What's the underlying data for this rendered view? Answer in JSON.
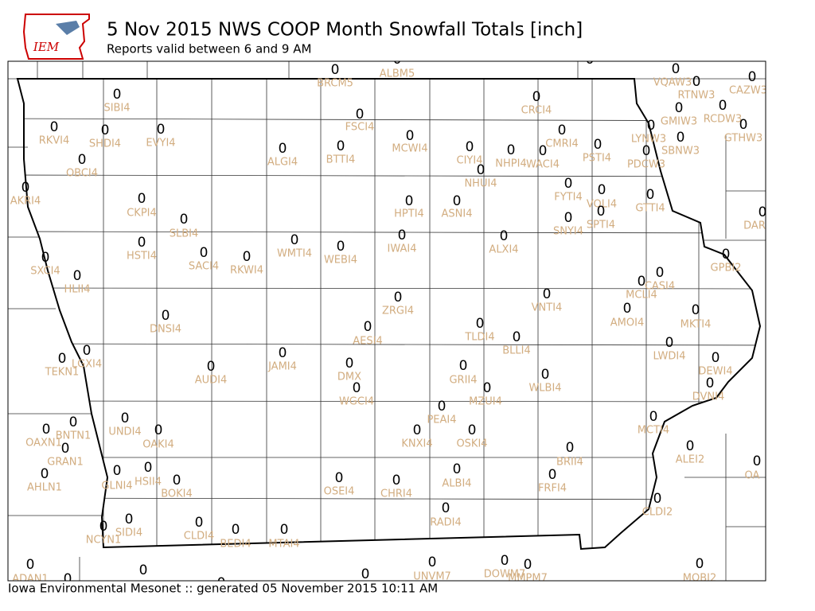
{
  "header": {
    "logo": "IEM",
    "title": "5 Nov 2015 NWS COOP Month Snowfall Totals [inch]",
    "subtitle": "Reports valid between 6 and 9 AM"
  },
  "map": {
    "stations": [
      {
        "name": "BRCM5",
        "value": 0
      },
      {
        "name": "ALBM5",
        "value": 0
      },
      {
        "name": null,
        "value": 0
      },
      {
        "name": "VQAW3",
        "value": 0
      },
      {
        "name": "RTNW3",
        "value": 0
      },
      {
        "name": "CAZW3",
        "value": 0
      },
      {
        "name": "SIBI4",
        "value": 0
      },
      {
        "name": "CRCI4",
        "value": 0
      },
      {
        "name": "GMIW3",
        "value": 0
      },
      {
        "name": "RCDW3",
        "value": 0
      },
      {
        "name": "FSCI4",
        "value": 0
      },
      {
        "name": "RKVI4",
        "value": 0
      },
      {
        "name": "SHDI4",
        "value": 0
      },
      {
        "name": "EVYI4",
        "value": 0
      },
      {
        "name": "LYNW3",
        "value": 0
      },
      {
        "name": "GTHW3",
        "value": 0
      },
      {
        "name": "MCWI4",
        "value": 0
      },
      {
        "name": "CMRI4",
        "value": 0
      },
      {
        "name": "SBNW3",
        "value": 0
      },
      {
        "name": "ALGI4",
        "value": 0
      },
      {
        "name": "BTTI4",
        "value": 0
      },
      {
        "name": "CIYI4",
        "value": 0
      },
      {
        "name": "NHPI4",
        "value": 0
      },
      {
        "name": "WACI4",
        "value": 0
      },
      {
        "name": "PSTI4",
        "value": 0
      },
      {
        "name": "PDCW3",
        "value": 0
      },
      {
        "name": "OBCI4",
        "value": 0
      },
      {
        "name": "NHUI4",
        "value": 0
      },
      {
        "name": "AKRI4",
        "value": 0
      },
      {
        "name": "CKPI4",
        "value": 0
      },
      {
        "name": "HPTI4",
        "value": 0
      },
      {
        "name": "ASNI4",
        "value": 0
      },
      {
        "name": "FYTI4",
        "value": 0
      },
      {
        "name": "VOLI4",
        "value": 0
      },
      {
        "name": "GTTI4",
        "value": 0
      },
      {
        "name": "DAR",
        "value": 0
      },
      {
        "name": "SLBI4",
        "value": 0
      },
      {
        "name": "SNYI4",
        "value": 0
      },
      {
        "name": "SPTI4",
        "value": 0
      },
      {
        "name": "IWAI4",
        "value": 0
      },
      {
        "name": "ALXI4",
        "value": 0
      },
      {
        "name": "GPBI2",
        "value": 0
      },
      {
        "name": "HSTI4",
        "value": 0
      },
      {
        "name": "SACI4",
        "value": 0
      },
      {
        "name": "RKWI4",
        "value": 0
      },
      {
        "name": "WMTI4",
        "value": 0
      },
      {
        "name": "WEBI4",
        "value": 0
      },
      {
        "name": "SXCI4",
        "value": 0
      },
      {
        "name": "HLII4",
        "value": 0
      },
      {
        "name": "CASI4",
        "value": 0
      },
      {
        "name": "MCLI4",
        "value": 0
      },
      {
        "name": "ZRGI4",
        "value": 0
      },
      {
        "name": "VNTI4",
        "value": 0
      },
      {
        "name": "AMOI4",
        "value": 0
      },
      {
        "name": "MKTI4",
        "value": 0
      },
      {
        "name": "DNSI4",
        "value": 0
      },
      {
        "name": "TLDI4",
        "value": 0
      },
      {
        "name": "AESI4",
        "value": 0
      },
      {
        "name": "BLLI4",
        "value": 0
      },
      {
        "name": "LWDI4",
        "value": 0
      },
      {
        "name": "JAMI4",
        "value": 0
      },
      {
        "name": "LGXI4",
        "value": 0
      },
      {
        "name": "TEKN1",
        "value": 0
      },
      {
        "name": "DEWI4",
        "value": 0
      },
      {
        "name": "AUDI4",
        "value": 0
      },
      {
        "name": "DMX",
        "value": 0
      },
      {
        "name": "GRII4",
        "value": 0
      },
      {
        "name": "WLBI4",
        "value": 0
      },
      {
        "name": "DVNI4",
        "value": 0
      },
      {
        "name": "WGCI4",
        "value": 0
      },
      {
        "name": "MZUI4",
        "value": 0
      },
      {
        "name": "PEAI4",
        "value": 0
      },
      {
        "name": "UNDI4",
        "value": 0
      },
      {
        "name": "BNTN1",
        "value": 0
      },
      {
        "name": "MCTI4",
        "value": 0
      },
      {
        "name": "OAKI4",
        "value": 0
      },
      {
        "name": "OAXN1",
        "value": 0
      },
      {
        "name": "KNXI4",
        "value": 0
      },
      {
        "name": "OSKI4",
        "value": 0
      },
      {
        "name": "ALEI2",
        "value": 0
      },
      {
        "name": "GRAN1",
        "value": 0
      },
      {
        "name": "BRII4",
        "value": 0
      },
      {
        "name": "OA",
        "value": 0
      },
      {
        "name": "GLNI4",
        "value": 0
      },
      {
        "name": "HSII4",
        "value": 0
      },
      {
        "name": "ALBI4",
        "value": 0
      },
      {
        "name": "FRFI4",
        "value": 0
      },
      {
        "name": "BOKI4",
        "value": 0
      },
      {
        "name": "OSEI4",
        "value": 0
      },
      {
        "name": "CHRI4",
        "value": 0
      },
      {
        "name": "AHLN1",
        "value": 0
      },
      {
        "name": "CLDI2",
        "value": 0
      },
      {
        "name": "RADI4",
        "value": 0
      },
      {
        "name": "CLDI4",
        "value": 0
      },
      {
        "name": "NCYN1",
        "value": 0
      },
      {
        "name": "SIDI4",
        "value": 0
      },
      {
        "name": "BEDI4",
        "value": 0
      },
      {
        "name": "MTAI4",
        "value": 0
      },
      {
        "name": "UNVM7",
        "value": 0
      },
      {
        "name": "DOWM7",
        "value": 0
      },
      {
        "name": "MMPM7",
        "value": 0
      },
      {
        "name": "MOBI2",
        "value": 0
      },
      {
        "name": "ADAN1",
        "value": 0
      },
      {
        "name": null,
        "value": 0
      },
      {
        "name": null,
        "value": 0
      },
      {
        "name": null,
        "value": 0
      },
      {
        "name": null,
        "value": 0
      }
    ]
  },
  "footer": "Iowa Environmental Mesonet :: generated 05 November 2015 10:11 AM"
}
